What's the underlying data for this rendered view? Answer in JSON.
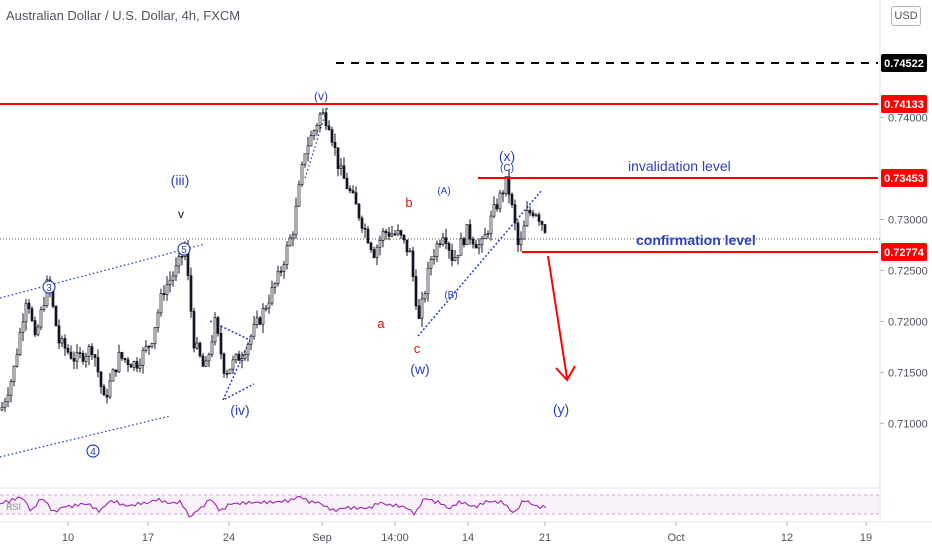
{
  "header": {
    "title": "Australian Dollar / U.S. Dollar, 4h, FXCM",
    "currency": "USD"
  },
  "colors": {
    "candle": "#131722",
    "level_red": "#ff0000",
    "wave_blue": "#2b3fbf",
    "wave_red": "#e01010",
    "grid_text": "#50535e",
    "rsi": "#9c27b0"
  },
  "chart_data": {
    "type": "candlestick",
    "ylim": [
      0.7058,
      0.7505
    ],
    "y_ticks": [
      "0.71000",
      "0.71500",
      "0.72000",
      "0.72500",
      "0.73000",
      "0.74000"
    ],
    "x_ticks": [
      "10",
      "17",
      "24",
      "Sep",
      "14:00",
      "14",
      "21",
      "Oct",
      "12",
      "19"
    ],
    "price_labels": [
      "0.74522",
      "0.74133",
      "0.73453",
      "0.72774"
    ],
    "price_path": [
      [
        0,
        0.7113
      ],
      [
        12,
        0.7148
      ],
      [
        26,
        0.7229
      ],
      [
        34,
        0.718
      ],
      [
        47,
        0.724
      ],
      [
        58,
        0.718
      ],
      [
        75,
        0.7162
      ],
      [
        92,
        0.7175
      ],
      [
        103,
        0.7122
      ],
      [
        118,
        0.7165
      ],
      [
        135,
        0.7158
      ],
      [
        150,
        0.718
      ],
      [
        162,
        0.723
      ],
      [
        176,
        0.7252
      ],
      [
        184,
        0.7272
      ],
      [
        193,
        0.718
      ],
      [
        204,
        0.715
      ],
      [
        214,
        0.7198
      ],
      [
        224,
        0.715
      ],
      [
        242,
        0.717
      ],
      [
        260,
        0.7205
      ],
      [
        278,
        0.7245
      ],
      [
        292,
        0.729
      ],
      [
        304,
        0.7368
      ],
      [
        312,
        0.7385
      ],
      [
        320,
        0.7405
      ],
      [
        328,
        0.7395
      ],
      [
        338,
        0.735
      ],
      [
        352,
        0.732
      ],
      [
        364,
        0.729
      ],
      [
        373,
        0.7268
      ],
      [
        383,
        0.7288
      ],
      [
        398,
        0.7285
      ],
      [
        409,
        0.7266
      ],
      [
        418,
        0.72
      ],
      [
        430,
        0.7262
      ],
      [
        443,
        0.729
      ],
      [
        452,
        0.726
      ],
      [
        466,
        0.7288
      ],
      [
        480,
        0.7272
      ],
      [
        493,
        0.7308
      ],
      [
        506,
        0.7338
      ],
      [
        513,
        0.73
      ],
      [
        518,
        0.7268
      ],
      [
        526,
        0.7305
      ],
      [
        534,
        0.731
      ],
      [
        545,
        0.729
      ]
    ],
    "levels": [
      {
        "price": 0.74522,
        "label": "0.74522",
        "style": "dashed",
        "color": "#000000"
      },
      {
        "price": 0.74133,
        "label": "0.74133",
        "style": "solid",
        "color": "#ff0000"
      },
      {
        "price": 0.73453,
        "label": "0.73453",
        "style": "solid",
        "color": "#ff0000",
        "note": "invalidation level"
      },
      {
        "price": 0.72774,
        "label": "0.72774",
        "style": "solid",
        "color": "#ff0000",
        "note": "confirmation level"
      }
    ],
    "wave_labels": [
      "(iii)",
      "v",
      "(iv)",
      "(v)",
      "a",
      "b",
      "c",
      "(w)",
      "(A)",
      "(B)",
      "(C)",
      "(x)",
      "(y)",
      "3",
      "4",
      "5"
    ],
    "indicator": "RSI"
  }
}
